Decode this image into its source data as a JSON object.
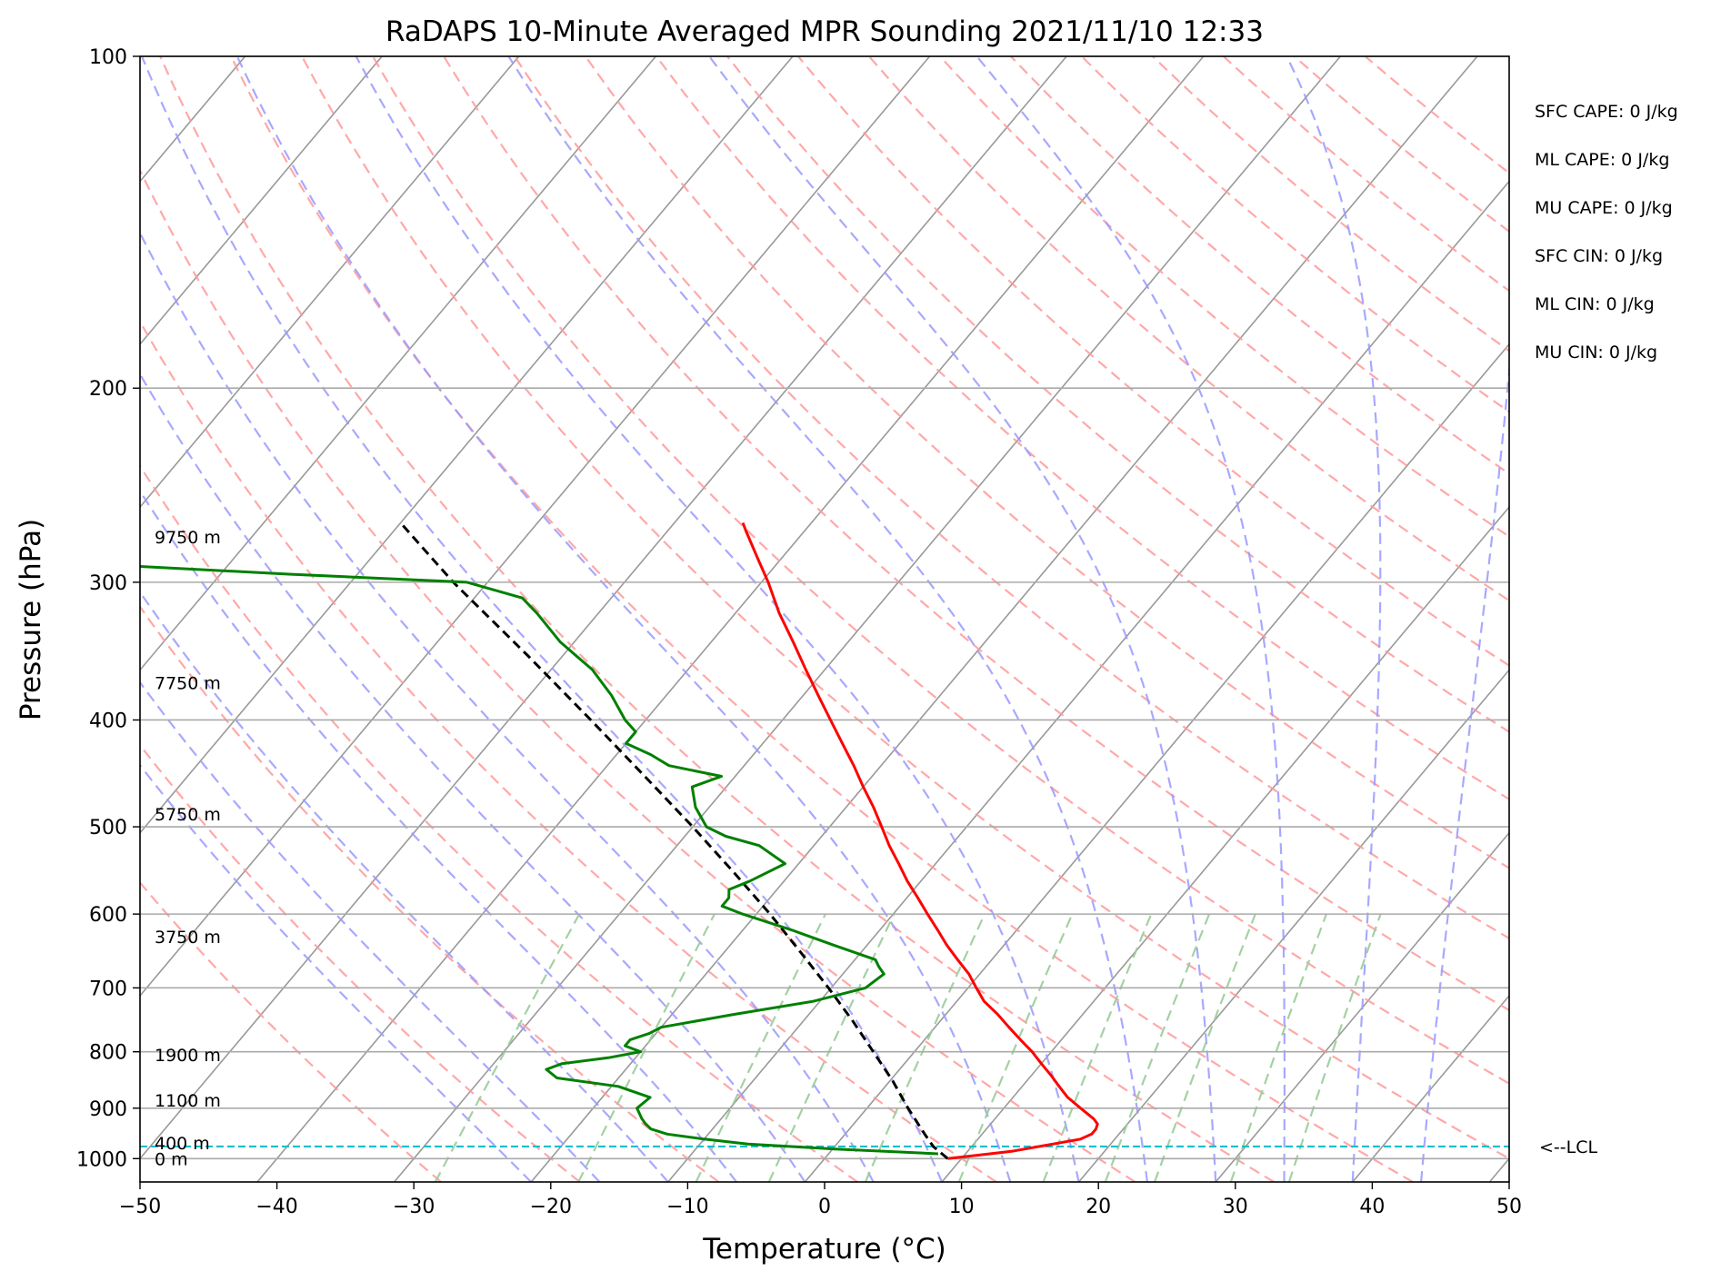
{
  "chart_data": {
    "type": "skew-t",
    "title": "RaDAPS 10-Minute Averaged MPR Sounding 2021/11/10 12:33",
    "xlabel": "Temperature (°C)",
    "ylabel": "Pressure (hPa)",
    "xlim": [
      -50,
      50
    ],
    "ylim": [
      1050,
      100
    ],
    "y_scale": "log",
    "x_ticks": [
      -50,
      -40,
      -30,
      -20,
      -10,
      0,
      10,
      20,
      30,
      40,
      50
    ],
    "x_tick_labels": [
      "−50",
      "−40",
      "−30",
      "−20",
      "−10",
      "0",
      "10",
      "20",
      "30",
      "40",
      "50"
    ],
    "y_ticks": [
      1000,
      900,
      800,
      700,
      600,
      500,
      400,
      300,
      200,
      100
    ],
    "y_tick_labels": [
      "1000",
      "900",
      "800",
      "700",
      "600",
      "500",
      "400",
      "300",
      "200",
      "100"
    ],
    "grid": true,
    "colors": {
      "temperature": "#ff0000",
      "dewpoint": "#008000",
      "parcel": "#000000",
      "lcl": "#17becf",
      "dry_adiabats": "#ff9999",
      "moist_adiabats": "#9999ff",
      "mixing_ratio": "#99cc99",
      "isotherms": "#999999"
    },
    "temperature_profile": {
      "p": [
        1000,
        985,
        970,
        960,
        950,
        940,
        930,
        920,
        900,
        880,
        860,
        840,
        820,
        800,
        780,
        760,
        740,
        720,
        700,
        680,
        660,
        640,
        620,
        600,
        580,
        560,
        540,
        520,
        500,
        480,
        460,
        440,
        420,
        400,
        380,
        360,
        340,
        320,
        300,
        285,
        270,
        265
      ],
      "t": [
        9.0,
        13.2,
        15.8,
        17.5,
        18.0,
        18.0,
        17.8,
        17.2,
        15.6,
        14.0,
        12.7,
        11.4,
        10.0,
        8.6,
        7.0,
        5.4,
        3.8,
        2.0,
        0.6,
        -0.8,
        -2.5,
        -4.2,
        -5.8,
        -7.5,
        -9.2,
        -11.0,
        -12.7,
        -14.5,
        -16.2,
        -18.0,
        -20.0,
        -22.0,
        -24.2,
        -26.5,
        -28.9,
        -31.4,
        -34.0,
        -36.8,
        -39.5,
        -41.8,
        -44.2,
        -45.0
      ]
    },
    "dewpoint_profile": {
      "p": [
        990,
        980,
        970,
        960,
        950,
        940,
        930,
        920,
        900,
        880,
        860,
        845,
        830,
        820,
        810,
        800,
        790,
        780,
        770,
        760,
        740,
        720,
        700,
        680,
        670,
        660,
        640,
        620,
        600,
        590,
        580,
        570,
        560,
        540,
        520,
        510,
        500,
        480,
        460,
        450,
        440,
        430,
        420,
        410,
        400,
        380,
        360,
        340,
        320,
        310,
        300,
        295,
        290
      ],
      "t": [
        8.0,
        0.0,
        -6.5,
        -10.0,
        -13.0,
        -14.5,
        -15.2,
        -15.8,
        -16.8,
        -16.5,
        -19.5,
        -24.5,
        -25.8,
        -25.0,
        -22.0,
        -20.0,
        -21.5,
        -21.5,
        -20.5,
        -20.0,
        -15.5,
        -10.5,
        -7.5,
        -7.0,
        -7.8,
        -8.5,
        -12.5,
        -16.5,
        -21.0,
        -23.0,
        -23.0,
        -23.5,
        -22.5,
        -21.0,
        -24.0,
        -27.0,
        -29.0,
        -31.0,
        -32.5,
        -31.0,
        -35.5,
        -37.5,
        -40.0,
        -40.0,
        -41.5,
        -44.0,
        -47.0,
        -51.0,
        -54.5,
        -56.5,
        -61.5,
        -75.0,
        -87.0
      ]
    },
    "parcel_profile": {
      "p": [
        1000,
        975,
        950,
        900,
        850,
        800,
        750,
        700,
        650,
        600,
        550,
        500,
        450,
        400,
        350,
        300,
        265
      ],
      "t": [
        9.0,
        7.2,
        5.8,
        3.0,
        0.2,
        -3.0,
        -6.4,
        -10.2,
        -14.4,
        -19.0,
        -24.2,
        -30.0,
        -36.6,
        -44.0,
        -52.5,
        -62.5,
        -70.0
      ]
    },
    "lcl_pressure": 975,
    "lcl_label": "<--LCL",
    "height_labels": [
      {
        "text": "9750 m",
        "p": 273
      },
      {
        "text": "7750 m",
        "p": 370
      },
      {
        "text": "5750 m",
        "p": 487
      },
      {
        "text": "3750 m",
        "p": 629
      },
      {
        "text": "1900 m",
        "p": 805
      },
      {
        "text": "1100 m",
        "p": 885
      },
      {
        "text": "400 m",
        "p": 968
      },
      {
        "text": "0 m",
        "p": 1000
      }
    ],
    "indices": [
      "SFC CAPE: 0 J/kg",
      "ML CAPE: 0 J/kg",
      "MU CAPE: 0 J/kg",
      "SFC CIN: 0 J/kg",
      "ML CIN: 0 J/kg",
      "MU CIN: 0 J/kg"
    ]
  }
}
